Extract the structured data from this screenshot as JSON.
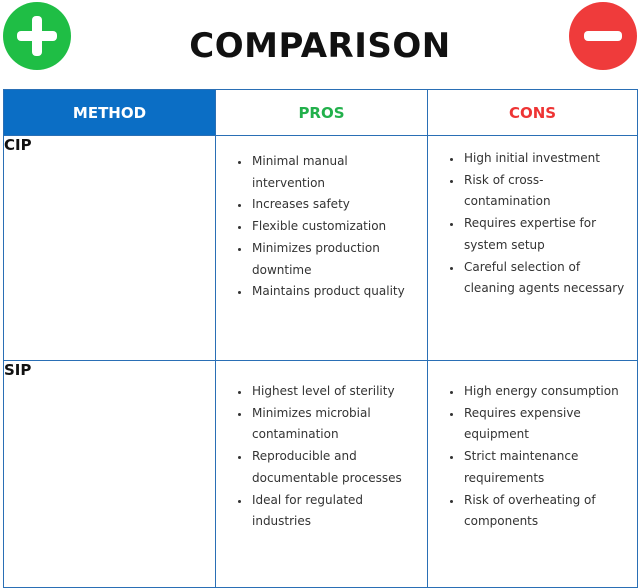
{
  "title": "COMPARISON",
  "icons": {
    "left": "plus-icon",
    "right": "minus-icon"
  },
  "colors": {
    "plus": "#1fbe45",
    "minus": "#ef3b3b",
    "method_header_bg": "#0b6ec5",
    "pros_text": "#22b04b",
    "cons_text": "#ee3434",
    "border": "#2a6fb5"
  },
  "headers": {
    "method": "METHOD",
    "pros": "PROS",
    "cons": "CONS"
  },
  "rows": [
    {
      "method": "CIP",
      "pros": [
        "Minimal manual intervention",
        "Increases safety",
        "Flexible customization",
        "Minimizes production downtime",
        "Maintains product quality"
      ],
      "cons": [
        "High initial investment",
        "Risk of cross-contamination",
        "Requires expertise for system setup",
        "Careful selection of cleaning agents necessary"
      ]
    },
    {
      "method": "SIP",
      "pros": [
        "Highest level of sterility",
        "Minimizes microbial contamination",
        "Reproducible and documentable processes",
        "Ideal for regulated industries"
      ],
      "cons": [
        "High energy consumption",
        "Requires expensive equipment",
        "Strict maintenance requirements",
        "Risk of overheating of components"
      ]
    }
  ]
}
